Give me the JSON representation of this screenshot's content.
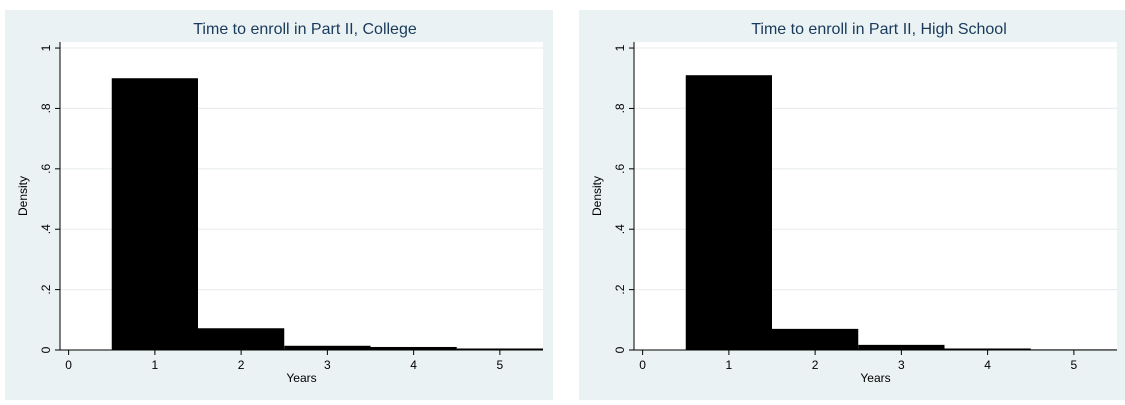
{
  "chart_data": [
    {
      "type": "bar",
      "title": "Time to enroll in Part II, College",
      "xlabel": "Years",
      "ylabel": "Density",
      "categories": [
        "1",
        "2",
        "3",
        "4",
        "5"
      ],
      "x": [
        1,
        2,
        3,
        4,
        5
      ],
      "values": [
        0.9,
        0.072,
        0.014,
        0.01,
        0.005
      ],
      "x_ticks": [
        "0",
        "1",
        "2",
        "3",
        "4",
        "5"
      ],
      "y_ticks": [
        "0",
        ".2",
        ".4",
        ".6",
        ".8",
        "1"
      ],
      "xlim": [
        -0.1,
        5.5
      ],
      "ylim": [
        0,
        1.02
      ],
      "grid": true,
      "colors": {
        "bar": "#000000",
        "grid": "#e8ecee",
        "outer_bg": "#eaf2f3",
        "plot_bg": "#ffffff",
        "title": "#1a3a5c"
      }
    },
    {
      "type": "bar",
      "title": "Time to enroll in Part II, High School",
      "xlabel": "Years",
      "ylabel": "Density",
      "categories": [
        "1",
        "2",
        "3",
        "4",
        "5"
      ],
      "x": [
        1,
        2,
        3,
        4,
        5
      ],
      "values": [
        0.91,
        0.07,
        0.017,
        0.005,
        0.002
      ],
      "x_ticks": [
        "0",
        "1",
        "2",
        "3",
        "4",
        "5"
      ],
      "y_ticks": [
        "0",
        ".2",
        ".4",
        ".6",
        ".8",
        "1"
      ],
      "xlim": [
        -0.1,
        5.5
      ],
      "ylim": [
        0,
        1.02
      ],
      "grid": true,
      "colors": {
        "bar": "#000000",
        "grid": "#e8ecee",
        "outer_bg": "#eaf2f3",
        "plot_bg": "#ffffff",
        "title": "#1a3a5c"
      }
    }
  ]
}
